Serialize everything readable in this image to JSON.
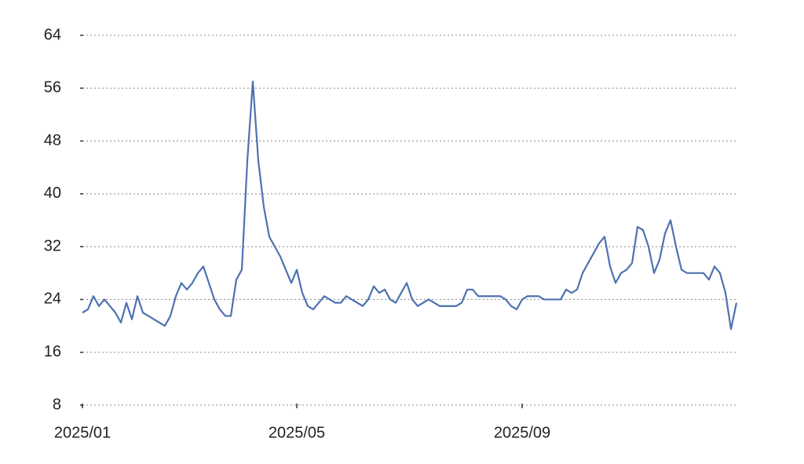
{
  "chart_data": {
    "type": "line",
    "categories": [
      "2025/01",
      null,
      null,
      null,
      null,
      null,
      null,
      null,
      null,
      null,
      null,
      null,
      null,
      null,
      null,
      null,
      null,
      null,
      null,
      null,
      null,
      null,
      null,
      null,
      null,
      null,
      null,
      null,
      null,
      null,
      null,
      null,
      null,
      null,
      null,
      null,
      null,
      null,
      null,
      "2025/05",
      null,
      null,
      null,
      null,
      null,
      null,
      null,
      null,
      null,
      null,
      null,
      null,
      null,
      null,
      null,
      null,
      null,
      null,
      null,
      null,
      null,
      null,
      null,
      null,
      null,
      null,
      null,
      null,
      null,
      null,
      null,
      null,
      null,
      null,
      null,
      null,
      null,
      null,
      null,
      null,
      "2025/09",
      null,
      null,
      null,
      null,
      null,
      null,
      null,
      null,
      null,
      null,
      null,
      null,
      null,
      null,
      null,
      null,
      null,
      null,
      null,
      null,
      null,
      null,
      null,
      null,
      null,
      null,
      null,
      null,
      null,
      null,
      null,
      null,
      null,
      null,
      null,
      null,
      null,
      null,
      null
    ],
    "values": [
      22,
      22.5,
      24.5,
      23,
      24,
      23,
      22,
      20.5,
      23.5,
      21,
      24.5,
      22,
      21.5,
      21,
      20.5,
      20,
      21.5,
      24.5,
      26.5,
      25.5,
      26.5,
      28,
      29,
      26.5,
      24,
      22.5,
      21.5,
      21.5,
      27,
      28.5,
      45,
      57,
      45,
      38,
      33.5,
      32,
      30.5,
      28.5,
      26.5,
      28.5,
      25,
      23,
      22.5,
      23.5,
      24.5,
      24,
      23.5,
      23.5,
      24.5,
      24,
      23.5,
      23,
      24,
      26,
      25,
      25.5,
      24,
      23.5,
      25,
      26.5,
      24,
      23,
      23.5,
      24,
      23.5,
      23,
      23,
      23,
      23,
      23.5,
      25.5,
      25.5,
      24.5,
      24.5,
      24.5,
      24.5,
      24.5,
      24,
      23,
      22.5,
      24,
      24.5,
      24.5,
      24.5,
      24,
      24,
      24,
      24,
      25.5,
      25,
      25.5,
      28,
      29.5,
      31,
      32.5,
      33.5,
      29,
      26.5,
      28,
      28.5,
      29.5,
      35,
      34.5,
      32,
      28,
      30,
      34,
      36,
      32,
      28.5,
      28,
      28,
      28,
      28,
      27,
      29,
      28,
      25,
      19.5,
      23.5
    ],
    "color": "#4e72b1",
    "ylim": [
      8,
      64
    ],
    "yticks": [
      8,
      16,
      24,
      32,
      40,
      48,
      56,
      64
    ],
    "grid": true
  }
}
